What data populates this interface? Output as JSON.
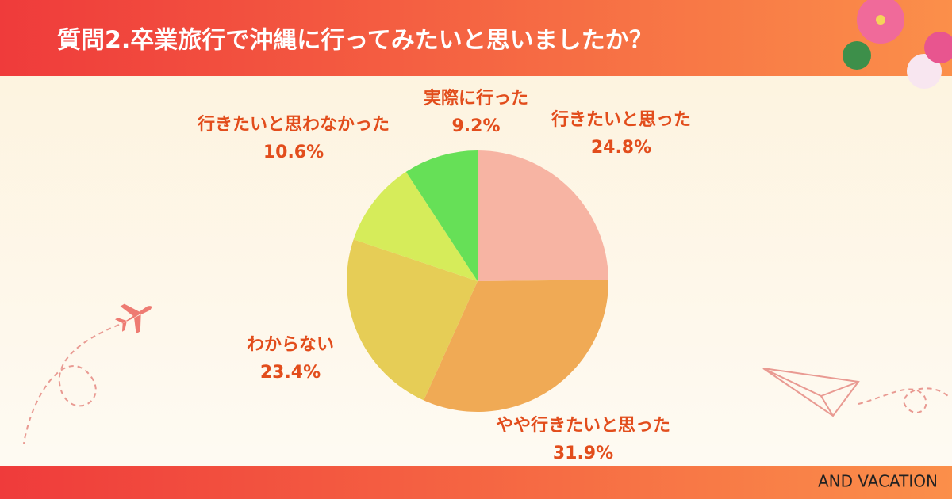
{
  "chart_data": {
    "type": "pie",
    "title": "質問2.卒業旅行で沖縄に行ってみたいと思いましたか？",
    "categories": [
      "行きたいと思った",
      "やや行きたいと思った",
      "わからない",
      "行きたいと思わなかった",
      "実際に行った"
    ],
    "values": [
      24.8,
      31.9,
      23.4,
      10.6,
      9.2
    ],
    "value_labels": [
      "24.8%",
      "31.9%",
      "23.4%",
      "10.6%",
      "9.2%"
    ],
    "colors": [
      "#f7b4a3",
      "#f0aa55",
      "#e6cd56",
      "#d6ec5a",
      "#66e057"
    ],
    "footer": "AND VACATION"
  }
}
